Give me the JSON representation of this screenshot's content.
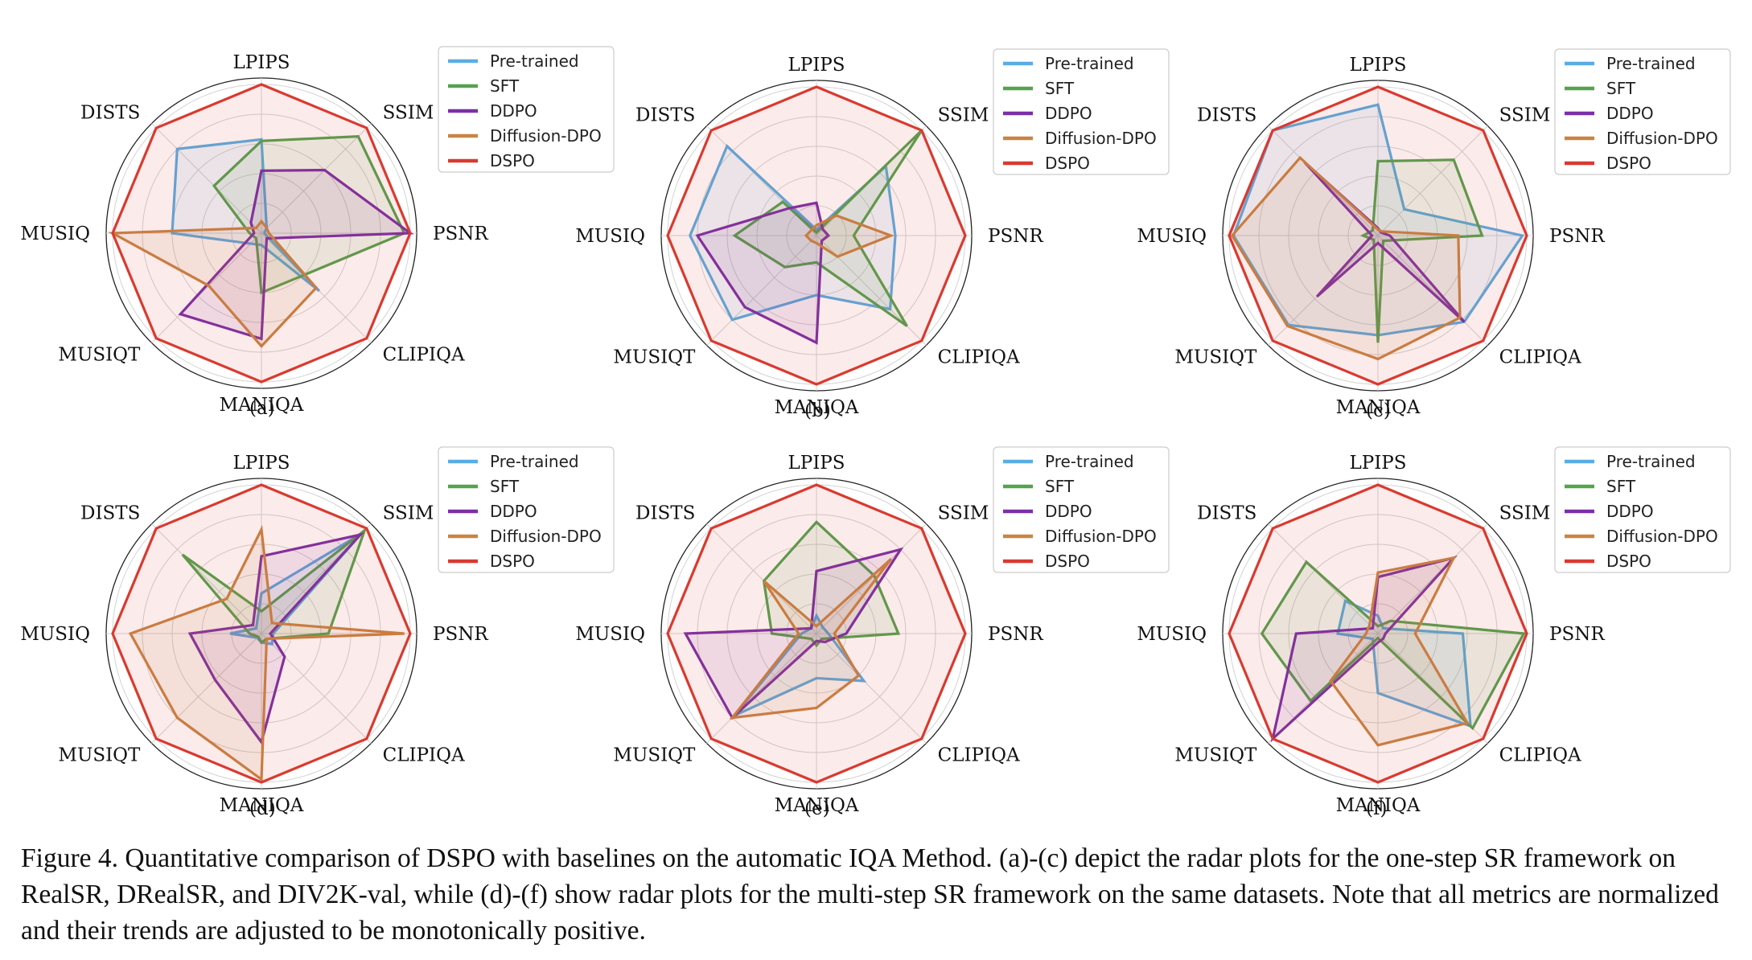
{
  "figure": {
    "caption": "Figure 4.  Quantitative comparison of DSPO with baselines on the automatic IQA Method.  (a)-(c) depict the radar plots for the one-step SR framework on RealSR, DRealSR, and DIV2K-val, while (d)-(f) show radar plots for the multi-step SR framework on the same datasets. Note that all metrics are normalized and their trends are adjusted to be monotonically positive."
  },
  "chart_data": [
    {
      "type": "radar",
      "panel_label": "(a)",
      "axes": [
        "PSNR",
        "SSIM",
        "LPIPS",
        "DISTS",
        "MUSIQ",
        "MUSIQT",
        "MANIQA",
        "CLIPIQA"
      ],
      "rlim": [
        0,
        1
      ],
      "grid": true,
      "legend_position": "right",
      "series": [
        {
          "name": "Pre-trained",
          "color": "#5aade3",
          "values": [
            0.02,
            0.05,
            0.63,
            0.8,
            0.6,
            0.1,
            0.08,
            0.55
          ]
        },
        {
          "name": "SFT",
          "color": "#55a24f",
          "values": [
            0.96,
            0.92,
            0.62,
            0.45,
            0.08,
            0.05,
            0.4,
            0.4
          ]
        },
        {
          "name": "DDPO",
          "color": "#7b2fa8",
          "values": [
            1.0,
            0.6,
            0.42,
            0.1,
            0.05,
            0.77,
            0.71,
            0.05
          ]
        },
        {
          "name": "Diffusion-DPO",
          "color": "#c98443",
          "values": [
            0.05,
            0.05,
            0.08,
            0.05,
            1.0,
            0.5,
            0.76,
            0.52
          ]
        },
        {
          "name": "DSPO",
          "color": "#d93a30",
          "values": [
            1,
            1,
            1,
            1,
            1,
            1,
            1,
            1
          ]
        }
      ]
    },
    {
      "type": "radar",
      "panel_label": "(b)",
      "axes": [
        "PSNR",
        "SSIM",
        "LPIPS",
        "DISTS",
        "MUSIQ",
        "MUSIQT",
        "MANIQA",
        "CLIPIQA"
      ],
      "rlim": [
        0,
        1
      ],
      "grid": true,
      "legend_position": "right",
      "series": [
        {
          "name": "Pre-trained",
          "color": "#5aade3",
          "values": [
            0.53,
            0.66,
            0.04,
            0.85,
            0.85,
            0.8,
            0.4,
            0.7
          ]
        },
        {
          "name": "SFT",
          "color": "#55a24f",
          "values": [
            0.25,
            1.0,
            0.02,
            0.32,
            0.55,
            0.3,
            0.18,
            0.86
          ]
        },
        {
          "name": "DDPO",
          "color": "#7b2fa8",
          "values": [
            0.08,
            0.06,
            0.22,
            0.26,
            0.8,
            0.68,
            0.72,
            0.05
          ]
        },
        {
          "name": "Diffusion-DPO",
          "color": "#c98443",
          "values": [
            0.5,
            0.19,
            0.07,
            0.05,
            0.07,
            0.05,
            0.05,
            0.2
          ]
        },
        {
          "name": "DSPO",
          "color": "#d93a30",
          "values": [
            1,
            1,
            1,
            1,
            1,
            1,
            1,
            1
          ]
        }
      ]
    },
    {
      "type": "radar",
      "panel_label": "(c)",
      "axes": [
        "PSNR",
        "SSIM",
        "LPIPS",
        "DISTS",
        "MUSIQ",
        "MUSIQT",
        "MANIQA",
        "CLIPIQA"
      ],
      "rlim": [
        0,
        1
      ],
      "grid": true,
      "legend_position": "right",
      "series": [
        {
          "name": "Pre-trained",
          "color": "#5aade3",
          "values": [
            0.97,
            0.25,
            0.88,
            1.0,
            0.97,
            0.85,
            0.67,
            0.82
          ]
        },
        {
          "name": "SFT",
          "color": "#55a24f",
          "values": [
            0.7,
            0.72,
            0.5,
            0.05,
            0.1,
            0.04,
            0.72,
            0.05
          ]
        },
        {
          "name": "DDPO",
          "color": "#7b2fa8",
          "values": [
            0.08,
            0.03,
            0.05,
            0.7,
            0.04,
            0.58,
            0.05,
            0.82
          ]
        },
        {
          "name": "Diffusion-DPO",
          "color": "#c98443",
          "values": [
            0.54,
            0.04,
            0.04,
            0.74,
            0.98,
            0.86,
            0.83,
            0.78
          ]
        },
        {
          "name": "DSPO",
          "color": "#d93a30",
          "values": [
            1,
            1,
            1,
            1,
            1,
            1,
            1,
            1
          ]
        }
      ]
    },
    {
      "type": "radar",
      "panel_label": "(d)",
      "axes": [
        "PSNR",
        "SSIM",
        "LPIPS",
        "DISTS",
        "MUSIQ",
        "MUSIQT",
        "MANIQA",
        "CLIPIQA"
      ],
      "rlim": [
        0,
        1
      ],
      "grid": true,
      "legend_position": "right",
      "series": [
        {
          "name": "Pre-trained",
          "color": "#5aade3",
          "values": [
            0.08,
            0.95,
            0.27,
            0.05,
            0.21,
            0.04,
            0.06,
            0.1
          ]
        },
        {
          "name": "SFT",
          "color": "#55a24f",
          "values": [
            0.45,
            0.98,
            0.15,
            0.75,
            0.08,
            0.03,
            0.06,
            0.05
          ]
        },
        {
          "name": "DDPO",
          "color": "#7b2fa8",
          "values": [
            0.06,
            0.94,
            0.52,
            0.08,
            0.48,
            0.44,
            0.73,
            0.22
          ]
        },
        {
          "name": "Diffusion-DPO",
          "color": "#c98443",
          "values": [
            0.96,
            0.1,
            0.7,
            0.33,
            0.88,
            0.8,
            0.98,
            0.05
          ]
        },
        {
          "name": "DSPO",
          "color": "#d93a30",
          "values": [
            1,
            1,
            1,
            1,
            1,
            1,
            1,
            1
          ]
        }
      ]
    },
    {
      "type": "radar",
      "panel_label": "(e)",
      "axes": [
        "PSNR",
        "SSIM",
        "LPIPS",
        "DISTS",
        "MUSIQ",
        "MUSIQT",
        "MANIQA",
        "CLIPIQA"
      ],
      "rlim": [
        0,
        1
      ],
      "grid": true,
      "legend_position": "right",
      "series": [
        {
          "name": "Pre-trained",
          "color": "#5aade3",
          "values": [
            0.08,
            0.06,
            0.12,
            0.05,
            0.1,
            0.78,
            0.3,
            0.45
          ]
        },
        {
          "name": "SFT",
          "color": "#55a24f",
          "values": [
            0.55,
            0.55,
            0.75,
            0.5,
            0.3,
            0.05,
            0.08,
            0.05
          ]
        },
        {
          "name": "DDPO",
          "color": "#7b2fa8",
          "values": [
            0.2,
            0.8,
            0.42,
            0.05,
            0.88,
            0.8,
            0.05,
            0.08
          ]
        },
        {
          "name": "Diffusion-DPO",
          "color": "#c98443",
          "values": [
            0.12,
            0.71,
            0.05,
            0.5,
            0.12,
            0.8,
            0.5,
            0.4
          ]
        },
        {
          "name": "DSPO",
          "color": "#d93a30",
          "values": [
            1,
            1,
            1,
            1,
            1,
            1,
            1,
            1
          ]
        }
      ]
    },
    {
      "type": "radar",
      "panel_label": "(f)",
      "axes": [
        "PSNR",
        "SSIM",
        "LPIPS",
        "DISTS",
        "MUSIQ",
        "MUSIQT",
        "MANIQA",
        "CLIPIQA"
      ],
      "rlim": [
        0,
        1
      ],
      "grid": true,
      "legend_position": "right",
      "series": [
        {
          "name": "Pre-trained",
          "color": "#5aade3",
          "values": [
            0.57,
            0.05,
            0.12,
            0.31,
            0.27,
            0.05,
            0.4,
            0.88
          ]
        },
        {
          "name": "SFT",
          "color": "#55a24f",
          "values": [
            0.98,
            0.12,
            0.05,
            0.68,
            0.78,
            0.64,
            0.03,
            0.9
          ]
        },
        {
          "name": "DDPO",
          "color": "#7b2fa8",
          "values": [
            0.05,
            0.72,
            0.38,
            0.05,
            0.55,
            1.0,
            0.06,
            0.05
          ]
        },
        {
          "name": "Diffusion-DPO",
          "color": "#c98443",
          "values": [
            0.25,
            0.72,
            0.41,
            0.08,
            0.08,
            0.45,
            0.75,
            0.85
          ]
        },
        {
          "name": "DSPO",
          "color": "#d93a30",
          "values": [
            1,
            1,
            1,
            1,
            1,
            1,
            1,
            1
          ]
        }
      ]
    }
  ]
}
